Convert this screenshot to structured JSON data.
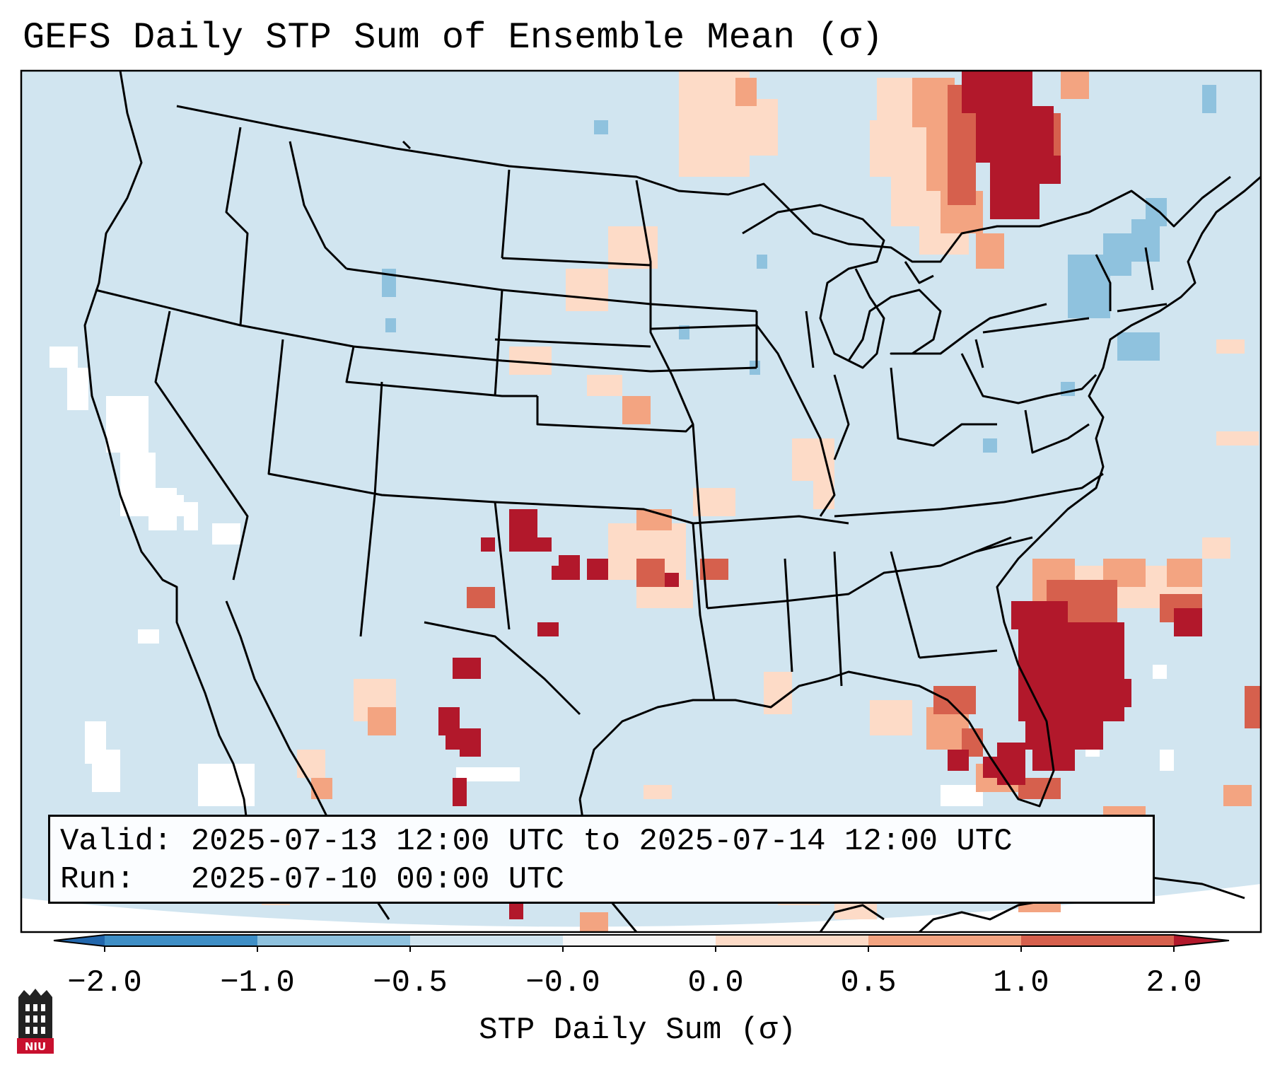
{
  "title": "GEFS Daily STP Sum of Ensemble Mean (σ)",
  "info": {
    "valid_label": "Valid:",
    "valid_value": "2025-07-13 12:00 UTC to 2025-07-14 12:00 UTC",
    "run_label": "Run:",
    "run_value": "2025-07-10 00:00 UTC"
  },
  "colorbar": {
    "label": "STP Daily Sum (σ)",
    "ticks": [
      "−2.0",
      "−1.0",
      "−0.5",
      "−0.0",
      "0.0",
      "0.5",
      "1.0",
      "2.0"
    ],
    "colors": [
      "#3f8fc6",
      "#8fc2de",
      "#d1e5f0",
      "#f7f7f7",
      "#fddbc7",
      "#f3a481",
      "#d6604d",
      "#b2182b"
    ],
    "extend": "both"
  },
  "palette": {
    "background_level": "#d1e5f0",
    "neutral": "#ffffff",
    "weak_positive": "#fddbc7",
    "moderate_positive": "#f3a481",
    "strong_positive": "#d6604d",
    "extreme_positive": "#b2182b",
    "weak_negative": "#8fc2de"
  },
  "logo_text": "NIU",
  "icons": {
    "logo": "niu-tower-logo-icon"
  }
}
